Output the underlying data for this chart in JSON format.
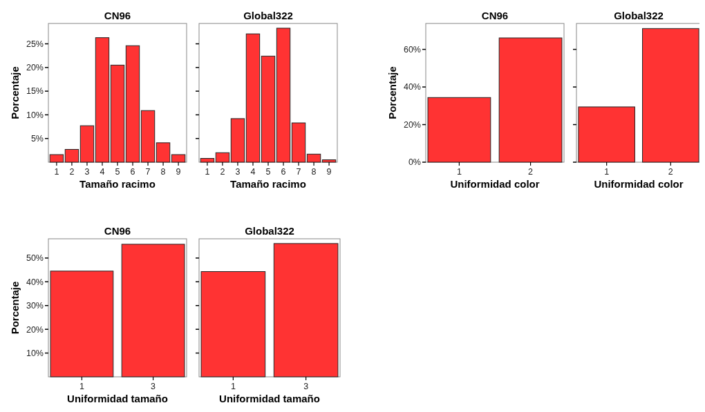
{
  "chart_data": [
    {
      "type": "bar",
      "title": "CN96",
      "xlabel": "Tamaño racimo",
      "ylabel": "Porcentaje",
      "categories": [
        "1",
        "2",
        "3",
        "4",
        "5",
        "6",
        "7",
        "8",
        "9"
      ],
      "values": [
        1.6,
        2.7,
        7.7,
        26.3,
        20.5,
        24.6,
        10.9,
        4.1,
        1.6
      ],
      "color": "#ff3333",
      "ylim": [
        0,
        29.3
      ],
      "yticks": [
        {
          "value": 5,
          "label": "5%"
        },
        {
          "value": 10,
          "label": "10%"
        },
        {
          "value": 15,
          "label": "15%"
        },
        {
          "value": 20,
          "label": "20%"
        },
        {
          "value": 25,
          "label": "25%"
        }
      ]
    },
    {
      "type": "bar",
      "title": "Global322",
      "xlabel": "Tamaño racimo",
      "categories": [
        "1",
        "2",
        "3",
        "4",
        "5",
        "6",
        "7",
        "8",
        "9"
      ],
      "values": [
        0.8,
        2.0,
        9.2,
        27.1,
        22.4,
        28.3,
        8.3,
        1.7,
        0.5
      ],
      "color": "#ff3333",
      "ylim": [
        0,
        29.3
      ],
      "yticks": [
        {
          "value": 5,
          "label": null
        },
        {
          "value": 10,
          "label": null
        },
        {
          "value": 15,
          "label": null
        },
        {
          "value": 20,
          "label": null
        },
        {
          "value": 25,
          "label": null
        }
      ],
      "tick_labels": "x"
    },
    {
      "type": "bar",
      "title": "CN96",
      "xlabel": "Uniformidad color",
      "ylabel": "Porcentaje",
      "categories": [
        "1",
        "2"
      ],
      "values": [
        34.4,
        66.1
      ],
      "color": "#ff3333",
      "ylim": [
        0,
        73.8
      ],
      "yticks": [
        {
          "value": 0,
          "label": "0%"
        },
        {
          "value": 20,
          "label": "20%"
        },
        {
          "value": 40,
          "label": "40%"
        },
        {
          "value": 60,
          "label": "60%"
        }
      ]
    },
    {
      "type": "bar",
      "title": "Global322",
      "xlabel": "Uniformidad color",
      "categories": [
        "1",
        "2"
      ],
      "values": [
        29.4,
        71.1
      ],
      "color": "#ff3333",
      "ylim": [
        0,
        73.8
      ],
      "yticks": [
        {
          "value": 0,
          "label": null
        },
        {
          "value": 20,
          "label": null
        },
        {
          "value": 40,
          "label": null
        },
        {
          "value": 60,
          "label": null
        }
      ],
      "tick_labels": "x"
    },
    {
      "type": "bar",
      "title": "CN96",
      "xlabel": "Uniformidad tamaño",
      "ylabel": "Porcentaje",
      "categories": [
        "1",
        "3"
      ],
      "values": [
        44.5,
        55.8
      ],
      "color": "#ff3333",
      "ylim": [
        0,
        58.1
      ],
      "yticks": [
        {
          "value": 10,
          "label": "10%"
        },
        {
          "value": 20,
          "label": "20%"
        },
        {
          "value": 30,
          "label": "30%"
        },
        {
          "value": 40,
          "label": "40%"
        },
        {
          "value": 50,
          "label": "50%"
        }
      ]
    },
    {
      "type": "bar",
      "title": "Global322",
      "xlabel": "Uniformidad tamaño",
      "categories": [
        "1",
        "3"
      ],
      "values": [
        44.3,
        56.1
      ],
      "color": "#ff3333",
      "ylim": [
        0,
        58.1
      ],
      "yticks": [
        {
          "value": 10,
          "label": null
        },
        {
          "value": 20,
          "label": null
        },
        {
          "value": 30,
          "label": null
        },
        {
          "value": 40,
          "label": null
        },
        {
          "value": 50,
          "label": null
        }
      ],
      "tick_labels": "x"
    }
  ]
}
